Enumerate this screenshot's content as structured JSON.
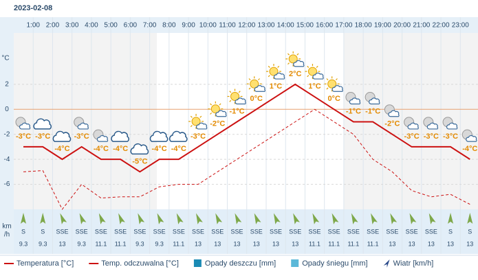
{
  "date": "2023-02-08",
  "chart_data": {
    "type": "line",
    "ylabel": "°C",
    "xticks": [
      "1:00",
      "2:00",
      "3:00",
      "4:00",
      "5:00",
      "6:00",
      "7:00",
      "8:00",
      "9:00",
      "10:00",
      "11:00",
      "12:00",
      "13:00",
      "14:00",
      "15:00",
      "16:00",
      "17:00",
      "18:00",
      "19:00",
      "20:00",
      "21:00",
      "22:00",
      "23:00"
    ],
    "ylim": [
      -8,
      6
    ],
    "yticks": [
      -6,
      -4,
      -2,
      0,
      2
    ],
    "grid": true,
    "series": [
      {
        "name": "Temperatura [°C]",
        "color": "#cc1111",
        "dashed": false,
        "values": [
          -3,
          -3,
          -4,
          -3,
          -4,
          -4,
          -5,
          -4,
          -4,
          -3,
          -2,
          -1,
          0,
          1,
          2,
          1,
          0,
          -1,
          -1,
          -2,
          -3,
          -3,
          -3,
          -4
        ],
        "value_labels": [
          "-3°C",
          "-3°C",
          "-4°C",
          "-3°C",
          "-4°C",
          "-4°C",
          "-5°C",
          "-4°C",
          "-4°C",
          "-3°C",
          "-2°C",
          "-1°C",
          "0°C",
          "1°C",
          "2°C",
          "1°C",
          "0°C",
          "-1°C",
          "-1°C",
          "-2°C",
          "-3°C",
          "-3°C",
          "-3°C",
          "-4°C"
        ]
      },
      {
        "name": "Temp. odczuwalna [°C]",
        "color": "#cc1111",
        "dashed": true,
        "values": [
          -5,
          -4.9,
          -8,
          -6,
          -7.1,
          -7,
          -7,
          -6.2,
          -6,
          -6,
          -5,
          -4,
          -3,
          -2,
          -1,
          0,
          -1,
          -2,
          -4,
          -5,
          -6.5,
          -7,
          -6.8,
          -7.6
        ]
      }
    ],
    "precip_legend": [
      {
        "name": "Opady deszczu [mm]",
        "color": "#1a8ab4"
      },
      {
        "name": "Opady śniegu [mm]",
        "color": "#5bb8d8"
      }
    ],
    "wind": {
      "name": "Wiatr [km/h]",
      "unit_label": [
        "km",
        "/h"
      ],
      "color": "#7ea84a",
      "directions": [
        "S",
        "S",
        "SSE",
        "SSE",
        "SSE",
        "SSE",
        "SSE",
        "SSE",
        "SSE",
        "SSE",
        "SSE",
        "SSE",
        "SSE",
        "SSE",
        "SSE",
        "SSE",
        "SSE",
        "SSE",
        "SSE",
        "SSE",
        "SSE",
        "SSE",
        "S",
        "S"
      ],
      "speeds": [
        9.3,
        9.3,
        13,
        9.3,
        11.1,
        11.1,
        9.3,
        9.3,
        11.1,
        13,
        13,
        13,
        13,
        13,
        13,
        11.1,
        11.1,
        11.1,
        11.1,
        13,
        13,
        13,
        13,
        13
      ]
    }
  }
}
